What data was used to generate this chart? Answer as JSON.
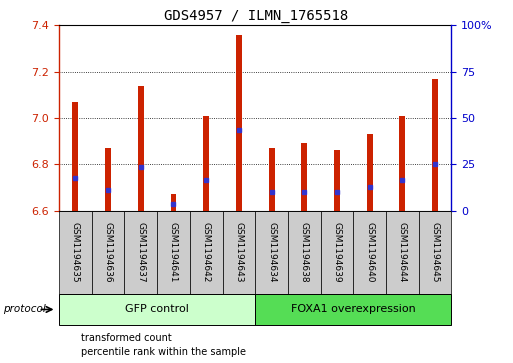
{
  "title": "GDS4957 / ILMN_1765518",
  "samples": [
    "GSM1194635",
    "GSM1194636",
    "GSM1194637",
    "GSM1194641",
    "GSM1194642",
    "GSM1194643",
    "GSM1194634",
    "GSM1194638",
    "GSM1194639",
    "GSM1194640",
    "GSM1194644",
    "GSM1194645"
  ],
  "bar_values": [
    7.07,
    6.87,
    7.14,
    6.67,
    7.01,
    7.36,
    6.87,
    6.89,
    6.86,
    6.93,
    7.01,
    7.17
  ],
  "blue_marker_values": [
    6.74,
    6.69,
    6.79,
    6.63,
    6.73,
    6.95,
    6.68,
    6.68,
    6.68,
    6.7,
    6.73,
    6.8
  ],
  "ylim_left": [
    6.6,
    7.4
  ],
  "ylim_right": [
    0,
    100
  ],
  "yticks_left": [
    6.6,
    6.8,
    7.0,
    7.2,
    7.4
  ],
  "yticks_right": [
    0,
    25,
    50,
    75,
    100
  ],
  "ytick_labels_right": [
    "0",
    "25",
    "50",
    "75",
    "100%"
  ],
  "bar_color": "#cc2200",
  "blue_color": "#3333cc",
  "bar_bottom": 6.6,
  "groups": [
    {
      "label": "GFP control",
      "start": 0,
      "end": 6,
      "color": "#ccffcc"
    },
    {
      "label": "FOXA1 overexpression",
      "start": 6,
      "end": 12,
      "color": "#55dd55"
    }
  ],
  "legend_items": [
    {
      "label": "transformed count",
      "color": "#cc2200"
    },
    {
      "label": "percentile rank within the sample",
      "color": "#3333cc"
    }
  ],
  "protocol_label": "protocol",
  "background_color": "#ffffff",
  "plot_bg_color": "#ffffff",
  "grid_color": "#000000",
  "tick_color_left": "#cc2200",
  "tick_color_right": "#0000cc",
  "bar_width": 0.18,
  "sample_area_color": "#cccccc",
  "sample_label_fontsize": 6.5,
  "title_fontsize": 10
}
